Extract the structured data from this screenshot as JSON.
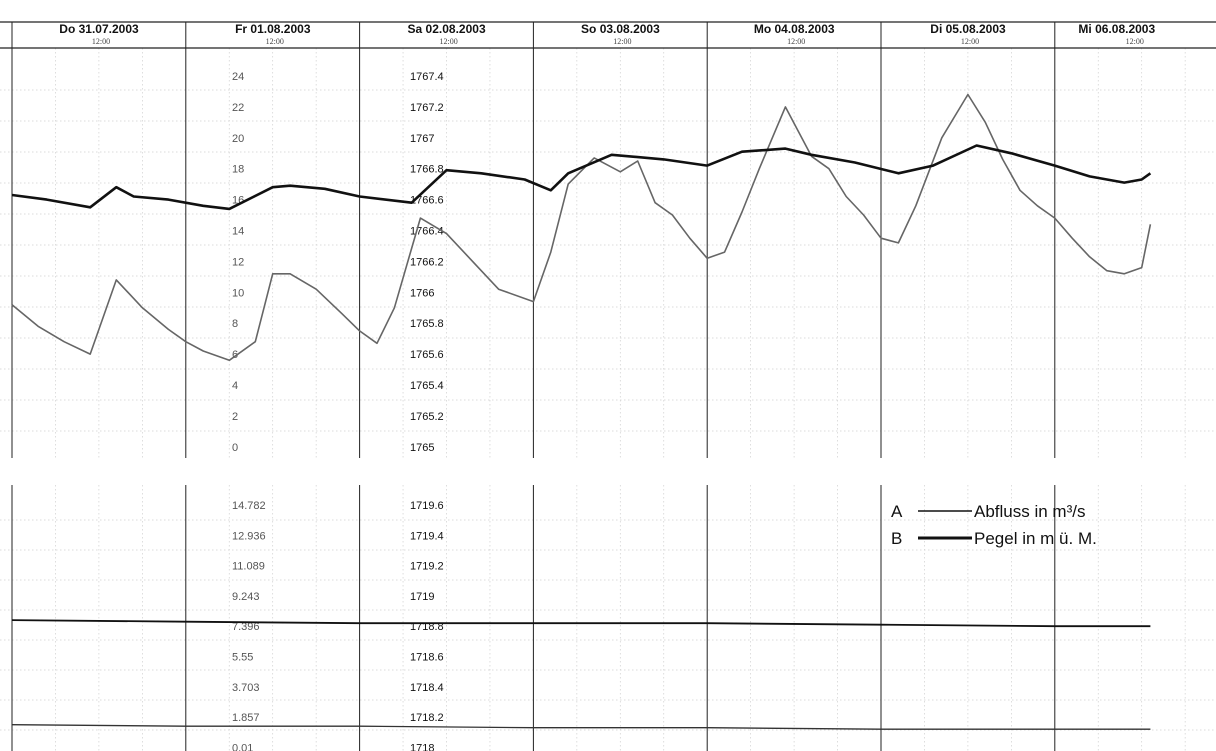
{
  "chart_data": [
    {
      "type": "line",
      "title": "",
      "x_axis": {
        "days": [
          "Do 31.07.2003",
          "Fr 01.08.2003",
          "Sa 02.08.2003",
          "So 03.08.2003",
          "Mo 04.08.2003",
          "Di 05.08.2003",
          "Mi 06.08.2003"
        ],
        "time_label": "12:00",
        "range": [
          "2003-07-31 00:00",
          "2003-08-07 00:00"
        ]
      },
      "y_left": {
        "ticks": [
          "24",
          "22",
          "20",
          "18",
          "16",
          "14",
          "12",
          "10",
          "8",
          "6",
          "4",
          "2",
          "0"
        ],
        "ylim": [
          0,
          25
        ]
      },
      "y_right": {
        "ticks": [
          "1767.4",
          "1767.2",
          "1767",
          "1766.8",
          "1766.6",
          "1766.4",
          "1766.2",
          "1766",
          "1765.8",
          "1765.6",
          "1765.4",
          "1765.2",
          "1765"
        ],
        "ylim": [
          1765,
          1767.5
        ]
      },
      "series": [
        {
          "axis": "left",
          "color": "#666666",
          "x_day": [
            0,
            0.15,
            0.3,
            0.45,
            0.6,
            0.75,
            0.9,
            1.0,
            1.1,
            1.25,
            1.4,
            1.45,
            1.5,
            1.6,
            1.75,
            1.9,
            2.0,
            2.1,
            2.2,
            2.35,
            2.5,
            2.65,
            2.8,
            3.0,
            3.1,
            3.2,
            3.35,
            3.5,
            3.6,
            3.7,
            3.8,
            3.9,
            4.0,
            4.1,
            4.2,
            4.3,
            4.45,
            4.6,
            4.7,
            4.8,
            4.9,
            5.0,
            5.1,
            5.2,
            5.35,
            5.5,
            5.6,
            5.7,
            5.8,
            5.9,
            6.0,
            6.1,
            6.2,
            6.3,
            6.4,
            6.5,
            6.55
          ],
          "values": [
            9.2,
            7.8,
            6.8,
            6.0,
            10.8,
            9.0,
            7.6,
            6.8,
            6.2,
            5.6,
            6.8,
            9.0,
            11.2,
            11.2,
            10.2,
            8.6,
            7.5,
            6.7,
            9.0,
            14.8,
            13.8,
            12.0,
            10.2,
            9.4,
            12.6,
            17.0,
            18.7,
            17.8,
            18.5,
            15.8,
            15.0,
            13.5,
            12.2,
            12.6,
            15.2,
            18.0,
            22.0,
            18.8,
            18.0,
            16.2,
            15.0,
            13.5,
            13.2,
            15.6,
            20.0,
            22.8,
            21.0,
            18.6,
            16.6,
            15.6,
            14.8,
            13.5,
            12.3,
            11.4,
            11.2,
            11.6,
            14.4
          ]
        },
        {
          "axis": "right",
          "color": "#111111",
          "x_day": [
            0,
            0.2,
            0.45,
            0.6,
            0.7,
            0.9,
            1.1,
            1.25,
            1.5,
            1.6,
            1.8,
            2.0,
            2.3,
            2.5,
            2.7,
            2.95,
            3.1,
            3.2,
            3.45,
            3.75,
            4.0,
            4.2,
            4.45,
            4.6,
            4.85,
            5.1,
            5.3,
            5.55,
            5.75,
            6.0,
            6.2,
            6.4,
            6.5,
            6.55
          ],
          "values": [
            1766.63,
            1766.6,
            1766.55,
            1766.68,
            1766.62,
            1766.6,
            1766.56,
            1766.54,
            1766.68,
            1766.69,
            1766.67,
            1766.62,
            1766.58,
            1766.79,
            1766.77,
            1766.73,
            1766.66,
            1766.77,
            1766.89,
            1766.86,
            1766.82,
            1766.91,
            1766.93,
            1766.89,
            1766.84,
            1766.77,
            1766.82,
            1766.95,
            1766.9,
            1766.82,
            1766.75,
            1766.71,
            1766.73,
            1766.77
          ]
        }
      ]
    },
    {
      "type": "line",
      "title": "",
      "y_left": {
        "ticks": [
          "14.782",
          "12.936",
          "11.089",
          "9.243",
          "7.396",
          "5.55",
          "3.703",
          "1.857",
          "0.01"
        ]
      },
      "y_right": {
        "ticks": [
          "1719.6",
          "1719.4",
          "1719.2",
          "1719",
          "1718.8",
          "1718.6",
          "1718.4",
          "1718.2",
          "1718"
        ],
        "ylim": [
          1718,
          1719.6
        ]
      },
      "series": [
        {
          "axis": "right",
          "color": "#111111",
          "x_day": [
            0,
            1,
            2,
            3,
            4,
            5,
            6,
            6.55
          ],
          "values": [
            1718.84,
            1718.83,
            1718.82,
            1718.82,
            1718.82,
            1718.81,
            1718.8,
            1718.8
          ]
        },
        {
          "axis": "right",
          "color": "#333333",
          "x_day": [
            0,
            1,
            2,
            3,
            4,
            5,
            6,
            6.55
          ],
          "values": [
            1718.15,
            1718.14,
            1718.14,
            1718.13,
            1718.13,
            1718.12,
            1718.12,
            1718.12
          ]
        }
      ],
      "legend": [
        {
          "key": "A",
          "label": "Abfluss in m³/s"
        },
        {
          "key": "B",
          "label": "Pegel in m ü. M."
        }
      ]
    }
  ]
}
